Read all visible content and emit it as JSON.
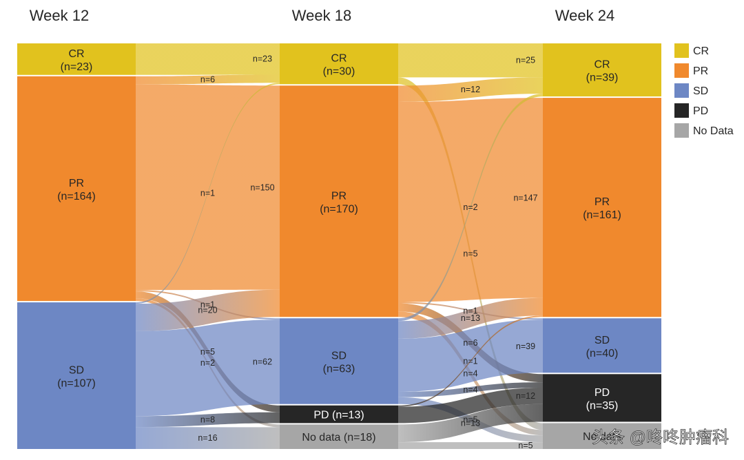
{
  "chart_data": {
    "type": "sankey",
    "columns": [
      {
        "title": "Week 12",
        "nodes": [
          {
            "id": "w12-cr",
            "line1": "CR",
            "line2": "(n=23)",
            "category": "CR",
            "value": 23
          },
          {
            "id": "w12-pr",
            "line1": "PR",
            "line2": "(n=164)",
            "category": "PR",
            "value": 164
          },
          {
            "id": "w12-sd",
            "line1": "SD",
            "line2": "(n=107)",
            "category": "SD",
            "value": 107
          }
        ]
      },
      {
        "title": "Week 18",
        "nodes": [
          {
            "id": "w18-cr",
            "line1": "CR",
            "line2": "(n=30)",
            "category": "CR",
            "value": 30
          },
          {
            "id": "w18-pr",
            "line1": "PR",
            "line2": "(n=170)",
            "category": "PR",
            "value": 170
          },
          {
            "id": "w18-sd",
            "line1": "SD",
            "line2": "(n=63)",
            "category": "SD",
            "value": 63
          },
          {
            "id": "w18-pd",
            "line1": "PD (n=13)",
            "line2": "",
            "category": "PD",
            "value": 13
          },
          {
            "id": "w18-nd",
            "line1": "No data (n=18)",
            "line2": "",
            "category": "No Data",
            "value": 18
          }
        ]
      },
      {
        "title": "Week 24",
        "nodes": [
          {
            "id": "w24-cr",
            "line1": "CR",
            "line2": "(n=39)",
            "category": "CR",
            "value": 39
          },
          {
            "id": "w24-pr",
            "line1": "PR",
            "line2": "(n=161)",
            "category": "PR",
            "value": 161
          },
          {
            "id": "w24-sd",
            "line1": "SD",
            "line2": "(n=40)",
            "category": "SD",
            "value": 40
          },
          {
            "id": "w24-pd",
            "line1": "PD",
            "line2": "(n=35)",
            "category": "PD",
            "value": 35
          },
          {
            "id": "w24-nd",
            "line1": "No data",
            "line2": "",
            "category": "No Data",
            "value": 19
          }
        ]
      }
    ],
    "links": [
      {
        "from": "w12-cr",
        "to": "w18-cr",
        "value": 23,
        "label": "n=23"
      },
      {
        "from": "w12-pr",
        "to": "w18-cr",
        "value": 6,
        "label": "n=6"
      },
      {
        "from": "w12-sd",
        "to": "w18-cr",
        "value": 1,
        "label": "n=1"
      },
      {
        "from": "w12-pr",
        "to": "w18-pr",
        "value": 150,
        "label": "n=150"
      },
      {
        "from": "w12-sd",
        "to": "w18-pr",
        "value": 20,
        "label": "n=20"
      },
      {
        "from": "w12-pr",
        "to": "w18-sd",
        "value": 1,
        "label": "n=1"
      },
      {
        "from": "w12-sd",
        "to": "w18-sd",
        "value": 62,
        "label": "n=62"
      },
      {
        "from": "w12-pr",
        "to": "w18-pd",
        "value": 5,
        "label": "n=5"
      },
      {
        "from": "w12-sd",
        "to": "w18-pd",
        "value": 8,
        "label": "n=8"
      },
      {
        "from": "w12-pr",
        "to": "w18-nd",
        "value": 2,
        "label": "n=2"
      },
      {
        "from": "w12-sd",
        "to": "w18-nd",
        "value": 16,
        "label": "n=16"
      },
      {
        "from": "w18-cr",
        "to": "w24-cr",
        "value": 25,
        "label": "n=25"
      },
      {
        "from": "w18-cr",
        "to": "w24-nd",
        "value": 5,
        "label": "n=5"
      },
      {
        "from": "w18-pr",
        "to": "w24-cr",
        "value": 12,
        "label": "n=12"
      },
      {
        "from": "w18-pr",
        "to": "w24-pr",
        "value": 147,
        "label": "n=147"
      },
      {
        "from": "w18-pr",
        "to": "w24-sd",
        "value": 1,
        "label": "n=1"
      },
      {
        "from": "w18-pr",
        "to": "w24-pd",
        "value": 6,
        "label": "n=6"
      },
      {
        "from": "w18-pr",
        "to": "w24-nd",
        "value": 4,
        "label": "n=4"
      },
      {
        "from": "w18-sd",
        "to": "w24-cr",
        "value": 2,
        "label": "n=2"
      },
      {
        "from": "w18-sd",
        "to": "w24-pr",
        "value": 13,
        "label": "n=13"
      },
      {
        "from": "w18-sd",
        "to": "w24-sd",
        "value": 39,
        "label": "n=39"
      },
      {
        "from": "w18-sd",
        "to": "w24-pd",
        "value": 4,
        "label": "n=4"
      },
      {
        "from": "w18-sd",
        "to": "w24-nd",
        "value": 5,
        "label": "n=5"
      },
      {
        "from": "w18-pd",
        "to": "w24-pr",
        "value": 1,
        "label": "n=1"
      },
      {
        "from": "w18-pd",
        "to": "w24-pd",
        "value": 12,
        "label": "n=12"
      },
      {
        "from": "w18-nd",
        "to": "w24-pd",
        "value": 13,
        "label": "n=13"
      },
      {
        "from": "w18-nd",
        "to": "w24-nd",
        "value": 5,
        "label": "n=5"
      }
    ],
    "legend": {
      "placement": "right",
      "items": [
        {
          "label": "CR",
          "color": "#e1c21e"
        },
        {
          "label": "PR",
          "color": "#f0892d"
        },
        {
          "label": "SD",
          "color": "#6d87c4"
        },
        {
          "label": "PD",
          "color": "#262626"
        },
        {
          "label": "No Data",
          "color": "#a6a6a6"
        }
      ]
    }
  },
  "watermark": "头条 @咚咚肿瘤科"
}
